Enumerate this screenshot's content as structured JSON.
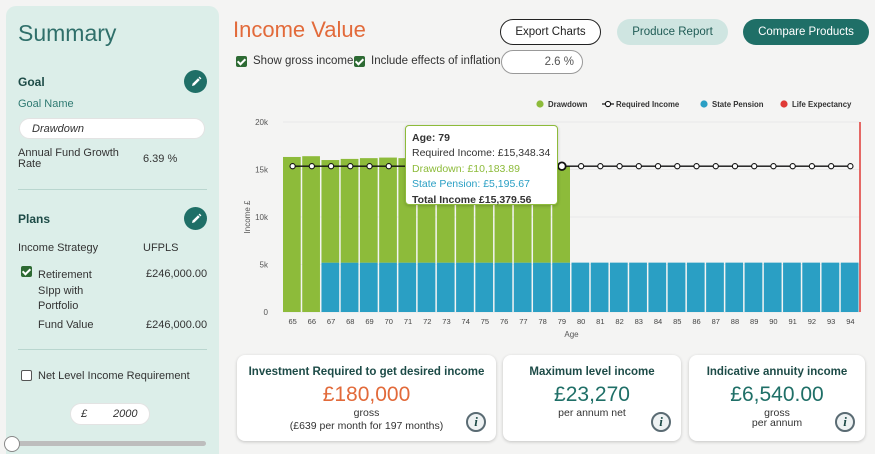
{
  "sidebar": {
    "title": "Summary",
    "goal_heading": "Goal",
    "goal_name_label": "Goal Name",
    "goal_name_value": "Drawdown",
    "growth_label_1": "Annual Fund Growth",
    "growth_label_2": "Rate",
    "growth_value": "6.39 %",
    "plans_heading": "Plans",
    "income_strategy_label": "Income Strategy",
    "income_strategy_value": "UFPLS",
    "plan_name_1": "Retirement",
    "plan_name_2": "SIpp with",
    "plan_name_3": "Portfolio",
    "plan_value": "£246,000.00",
    "fund_value_label": "Fund Value",
    "fund_value": "£246,000.00",
    "net_level_label": "Net Level Income Requirement",
    "net_currency": "£",
    "net_value": "2000",
    "icons": {
      "edit": "pencil-icon",
      "info": "info-icon"
    }
  },
  "header": {
    "title": "Income Value",
    "export_label": "Export Charts",
    "report_label": "Produce Report",
    "compare_label": "Compare Products",
    "show_gross_label": "Show gross income",
    "inflation_label": "Include effects of inflation",
    "inflation_value": "2.6 %"
  },
  "colors": {
    "drawdown": "#8dbb3a",
    "state_pension": "#2a9fc4",
    "life_expectancy": "#e03a36",
    "required_income": "#111111",
    "accent": "#1f6f67",
    "title": "#e26a3a"
  },
  "chart_data": {
    "type": "bar",
    "stacked": true,
    "xlabel": "Age",
    "ylabel": "Income £",
    "ylim": [
      0,
      20000
    ],
    "yticks": [
      "0",
      "5k",
      "10k",
      "15k",
      "20k"
    ],
    "categories": [
      "65",
      "66",
      "67",
      "68",
      "69",
      "70",
      "71",
      "72",
      "73",
      "74",
      "75",
      "76",
      "77",
      "78",
      "79",
      "80",
      "81",
      "82",
      "83",
      "84",
      "85",
      "86",
      "87",
      "88",
      "89",
      "90",
      "91",
      "92",
      "93",
      "94"
    ],
    "series": [
      {
        "name": "Drawdown",
        "color": "#8dbb3a",
        "values": [
          16320,
          16400,
          10800,
          10920,
          11000,
          11060,
          11000,
          10950,
          10900,
          10800,
          10680,
          10620,
          10560,
          10400,
          10184,
          0,
          0,
          0,
          0,
          0,
          0,
          0,
          0,
          0,
          0,
          0,
          0,
          0,
          0,
          0
        ]
      },
      {
        "name": "State Pension",
        "color": "#2a9fc4",
        "values": [
          0,
          0,
          5196,
          5196,
          5196,
          5196,
          5196,
          5196,
          5196,
          5196,
          5196,
          5196,
          5196,
          5196,
          5196,
          5196,
          5196,
          5196,
          5196,
          5196,
          5196,
          5196,
          5196,
          5196,
          5196,
          5196,
          5196,
          5196,
          5196,
          5196
        ]
      },
      {
        "name": "Required Income",
        "type": "line",
        "color": "#111111",
        "values": [
          15348,
          15348,
          15348,
          15348,
          15348,
          15348,
          15348,
          15348,
          15348,
          15348,
          15348,
          15348,
          15348,
          15348,
          15348,
          15348,
          15348,
          15348,
          15348,
          15348,
          15348,
          15348,
          15348,
          15348,
          15348,
          15348,
          15348,
          15348,
          15348,
          15348
        ]
      }
    ],
    "life_expectancy_marker": "95",
    "legend": {
      "position": "top-right",
      "items": [
        {
          "name": "Drawdown",
          "color": "#8dbb3a",
          "marker": "dot"
        },
        {
          "name": "Required Income",
          "color": "#111111",
          "marker": "line-circle"
        },
        {
          "name": "State Pension",
          "color": "#2a9fc4",
          "marker": "dot"
        },
        {
          "name": "Life Expectancy",
          "color": "#e03a36",
          "marker": "dot"
        }
      ]
    },
    "tooltip": {
      "title": "Age: 79",
      "required": "Required Income: £15,348.34",
      "drawdown": "Drawdown: £10,183.89",
      "state_pension": "State Pension: £5,195.67",
      "total": "Total Income £15,379.56"
    }
  },
  "cards": [
    {
      "title": "Investment Required to get desired income",
      "value": "£180,000",
      "sub1": "gross",
      "sub2": "(£639 per month for 197 months)",
      "value_color": "#e26a3a"
    },
    {
      "title": "Maximum level income",
      "value": "£23,270",
      "sub1": "per annum net",
      "sub2": "",
      "value_color": "#1f6f67"
    },
    {
      "title": "Indicative annuity income",
      "value": "£6,540.00",
      "sub1": "gross",
      "sub2": "per annum",
      "value_color": "#1f6f67"
    }
  ]
}
